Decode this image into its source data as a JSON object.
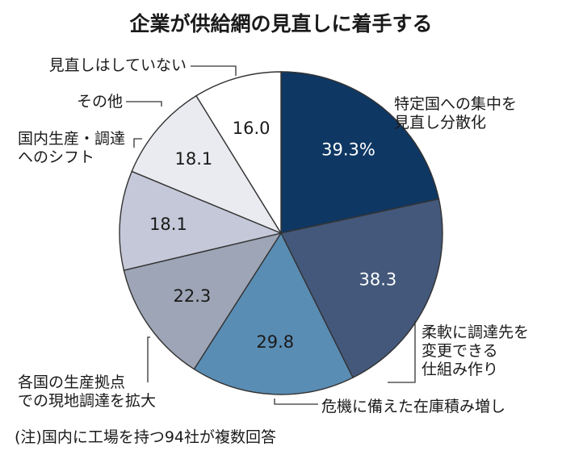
{
  "chart_data": {
    "type": "pie",
    "title": "企業が供給網の見直しに着手する",
    "categories": [
      [
        "特定国への集中を",
        "見直し分散化"
      ],
      [
        "柔軟に調達先を",
        "変更できる",
        "仕組み作り"
      ],
      [
        "危機に備えた在庫積み増し"
      ],
      [
        "各国の生産拠点",
        "での現地調達を拡大"
      ],
      [
        "国内生産・調達",
        "へのシフト"
      ],
      [
        "その他"
      ],
      [
        "見直しはしていない"
      ]
    ],
    "values": [
      39.3,
      38.3,
      29.8,
      22.3,
      18.1,
      18.1,
      16.0
    ],
    "value_labels": [
      "39.3%",
      "38.3",
      "29.8",
      "22.3",
      "18.1",
      "18.1",
      "16.0"
    ],
    "colors": [
      "#0f3763",
      "#43587a",
      "#5a8db4",
      "#9da5b6",
      "#c5c8d8",
      "#e9ebf0",
      "#ffffff"
    ],
    "value_text_colors": [
      "#ffffff",
      "#ffffff",
      "#1a1a1a",
      "#1a1a1a",
      "#1a1a1a",
      "#1a1a1a",
      "#1a1a1a"
    ],
    "note": "(注)国内に工場を持つ94社が複数回答"
  }
}
